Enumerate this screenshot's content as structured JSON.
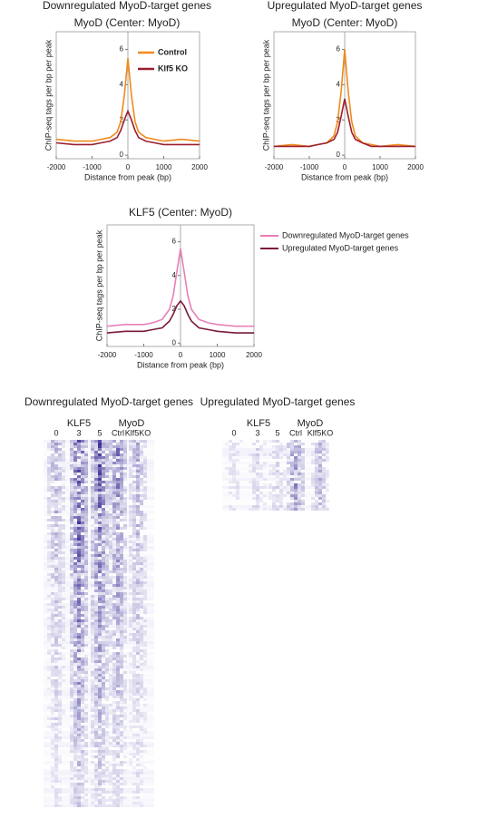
{
  "chart_data": [
    {
      "type": "line",
      "title": "Downregulated MyoD-target genes",
      "subtitle": "MyoD (Center: MyoD)",
      "x_label": "Distance from peak (bp)",
      "y_label": "ChIP-seq tags per bp per peak",
      "x": [
        -2000,
        -1500,
        -1000,
        -750,
        -500,
        -300,
        -200,
        -100,
        0,
        100,
        200,
        300,
        500,
        750,
        1000,
        1500,
        2000
      ],
      "series": [
        {
          "name": "Control",
          "color": "#f08a1c",
          "values": [
            0.9,
            0.8,
            0.8,
            0.9,
            1.0,
            1.3,
            1.9,
            3.4,
            5.5,
            3.4,
            1.9,
            1.3,
            1.0,
            0.9,
            0.8,
            0.9,
            0.8
          ]
        },
        {
          "name": "Klf5 KO",
          "color": "#9c1f2e",
          "values": [
            0.7,
            0.6,
            0.6,
            0.7,
            0.8,
            1.0,
            1.4,
            2.0,
            2.5,
            2.0,
            1.4,
            1.0,
            0.8,
            0.7,
            0.6,
            0.6,
            0.6
          ]
        }
      ],
      "xlim": [
        -2000,
        2000
      ],
      "xticks": [
        -2000,
        -1000,
        0,
        1000,
        2000
      ],
      "ylim": [
        -0.2,
        7
      ],
      "yticks": [
        0,
        2,
        4,
        6
      ],
      "legend": "inside"
    },
    {
      "type": "line",
      "title": "Upregulated MyoD-target genes",
      "subtitle": "MyoD (Center: MyoD)",
      "x_label": "Distance from peak (bp)",
      "y_label": "ChIP-seq tags per bp per peak",
      "x": [
        -2000,
        -1500,
        -1000,
        -750,
        -500,
        -300,
        -200,
        -100,
        0,
        100,
        200,
        300,
        500,
        750,
        1000,
        1500,
        2000
      ],
      "series": [
        {
          "name": "Control",
          "color": "#f08a1c",
          "values": [
            0.5,
            0.6,
            0.5,
            0.6,
            0.7,
            1.1,
            1.9,
            3.6,
            6.0,
            3.6,
            1.9,
            1.1,
            0.7,
            0.6,
            0.5,
            0.6,
            0.5
          ]
        },
        {
          "name": "Klf5 KO",
          "color": "#9c1f2e",
          "values": [
            0.5,
            0.5,
            0.5,
            0.6,
            0.7,
            0.9,
            1.3,
            2.2,
            3.2,
            2.2,
            1.3,
            0.9,
            0.7,
            0.5,
            0.5,
            0.5,
            0.5
          ]
        }
      ],
      "xlim": [
        -2000,
        2000
      ],
      "xticks": [
        -2000,
        -1000,
        0,
        1000,
        2000
      ],
      "ylim": [
        -0.2,
        7
      ],
      "yticks": [
        0,
        2,
        4,
        6
      ]
    },
    {
      "type": "line",
      "title": "KLF5 (Center: MyoD)",
      "x_label": "Distance from peak (bp)",
      "y_label": "ChIP-seq tags per bp per peak",
      "x": [
        -2000,
        -1500,
        -1000,
        -750,
        -500,
        -300,
        -200,
        -100,
        0,
        100,
        200,
        300,
        500,
        750,
        1000,
        1500,
        2000
      ],
      "series": [
        {
          "name": "Downregulated MyoD-target genes",
          "color": "#e87fb8",
          "values": [
            1.0,
            1.1,
            1.1,
            1.2,
            1.4,
            2.0,
            2.8,
            4.2,
            5.6,
            4.2,
            2.8,
            2.0,
            1.4,
            1.2,
            1.1,
            1.0,
            1.0
          ]
        },
        {
          "name": "Upregulated MyoD-target genes",
          "color": "#7a1a3a",
          "values": [
            0.6,
            0.7,
            0.7,
            0.8,
            0.9,
            1.3,
            1.7,
            2.2,
            2.5,
            2.2,
            1.7,
            1.3,
            0.9,
            0.8,
            0.7,
            0.6,
            0.6
          ]
        }
      ],
      "xlim": [
        -2000,
        2000
      ],
      "xticks": [
        -2000,
        -1000,
        0,
        1000,
        2000
      ],
      "ylim": [
        -0.2,
        7
      ],
      "yticks": [
        0,
        2,
        4,
        6
      ],
      "legend": "right"
    }
  ],
  "heatmaps": [
    {
      "title": "Downregulated MyoD-target genes",
      "groups": [
        "KLF5",
        "MyoD"
      ],
      "columns": [
        "0",
        "3",
        "5",
        "Ctrl",
        "Klf5KO"
      ]
    },
    {
      "title": "Upregulated MyoD-target genes",
      "groups": [
        "KLF5",
        "MyoD"
      ],
      "columns": [
        "0",
        "3",
        "5",
        "Ctrl",
        "Klf5KO"
      ]
    }
  ]
}
